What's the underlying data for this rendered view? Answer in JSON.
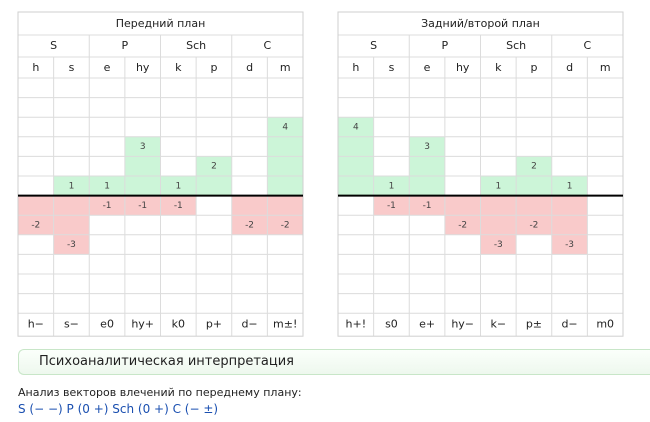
{
  "panels": [
    {
      "title": "Передний план",
      "groups": [
        "S",
        "P",
        "Sch",
        "C"
      ],
      "factors": [
        "h",
        "s",
        "e",
        "hy",
        "k",
        "p",
        "d",
        "m"
      ],
      "plus": [
        0,
        1,
        1,
        3,
        1,
        2,
        0,
        4
      ],
      "minus": [
        -2,
        -3,
        -1,
        -1,
        -1,
        0,
        -2,
        -2
      ],
      "results": [
        "h−",
        "s−",
        "e0",
        "hy+",
        "k0",
        "p+",
        "d−",
        "m±!"
      ]
    },
    {
      "title": "Задний/второй план",
      "groups": [
        "S",
        "P",
        "Sch",
        "C"
      ],
      "factors": [
        "h",
        "s",
        "e",
        "hy",
        "k",
        "p",
        "d",
        "m"
      ],
      "plus": [
        4,
        1,
        3,
        0,
        1,
        2,
        1,
        0
      ],
      "minus": [
        0,
        -1,
        -1,
        -2,
        -3,
        -2,
        -3,
        0
      ],
      "results": [
        "h+!",
        "s0",
        "e+",
        "hy−",
        "k−",
        "p±",
        "d−",
        "m0"
      ]
    }
  ],
  "section": {
    "title": "Психоаналитическая интерпретация"
  },
  "analysis": {
    "heading": "Анализ векторов влечений по переднему плану:",
    "formula": "S (− −) P (0 +) Sch (0 +) C (− ±)"
  }
}
